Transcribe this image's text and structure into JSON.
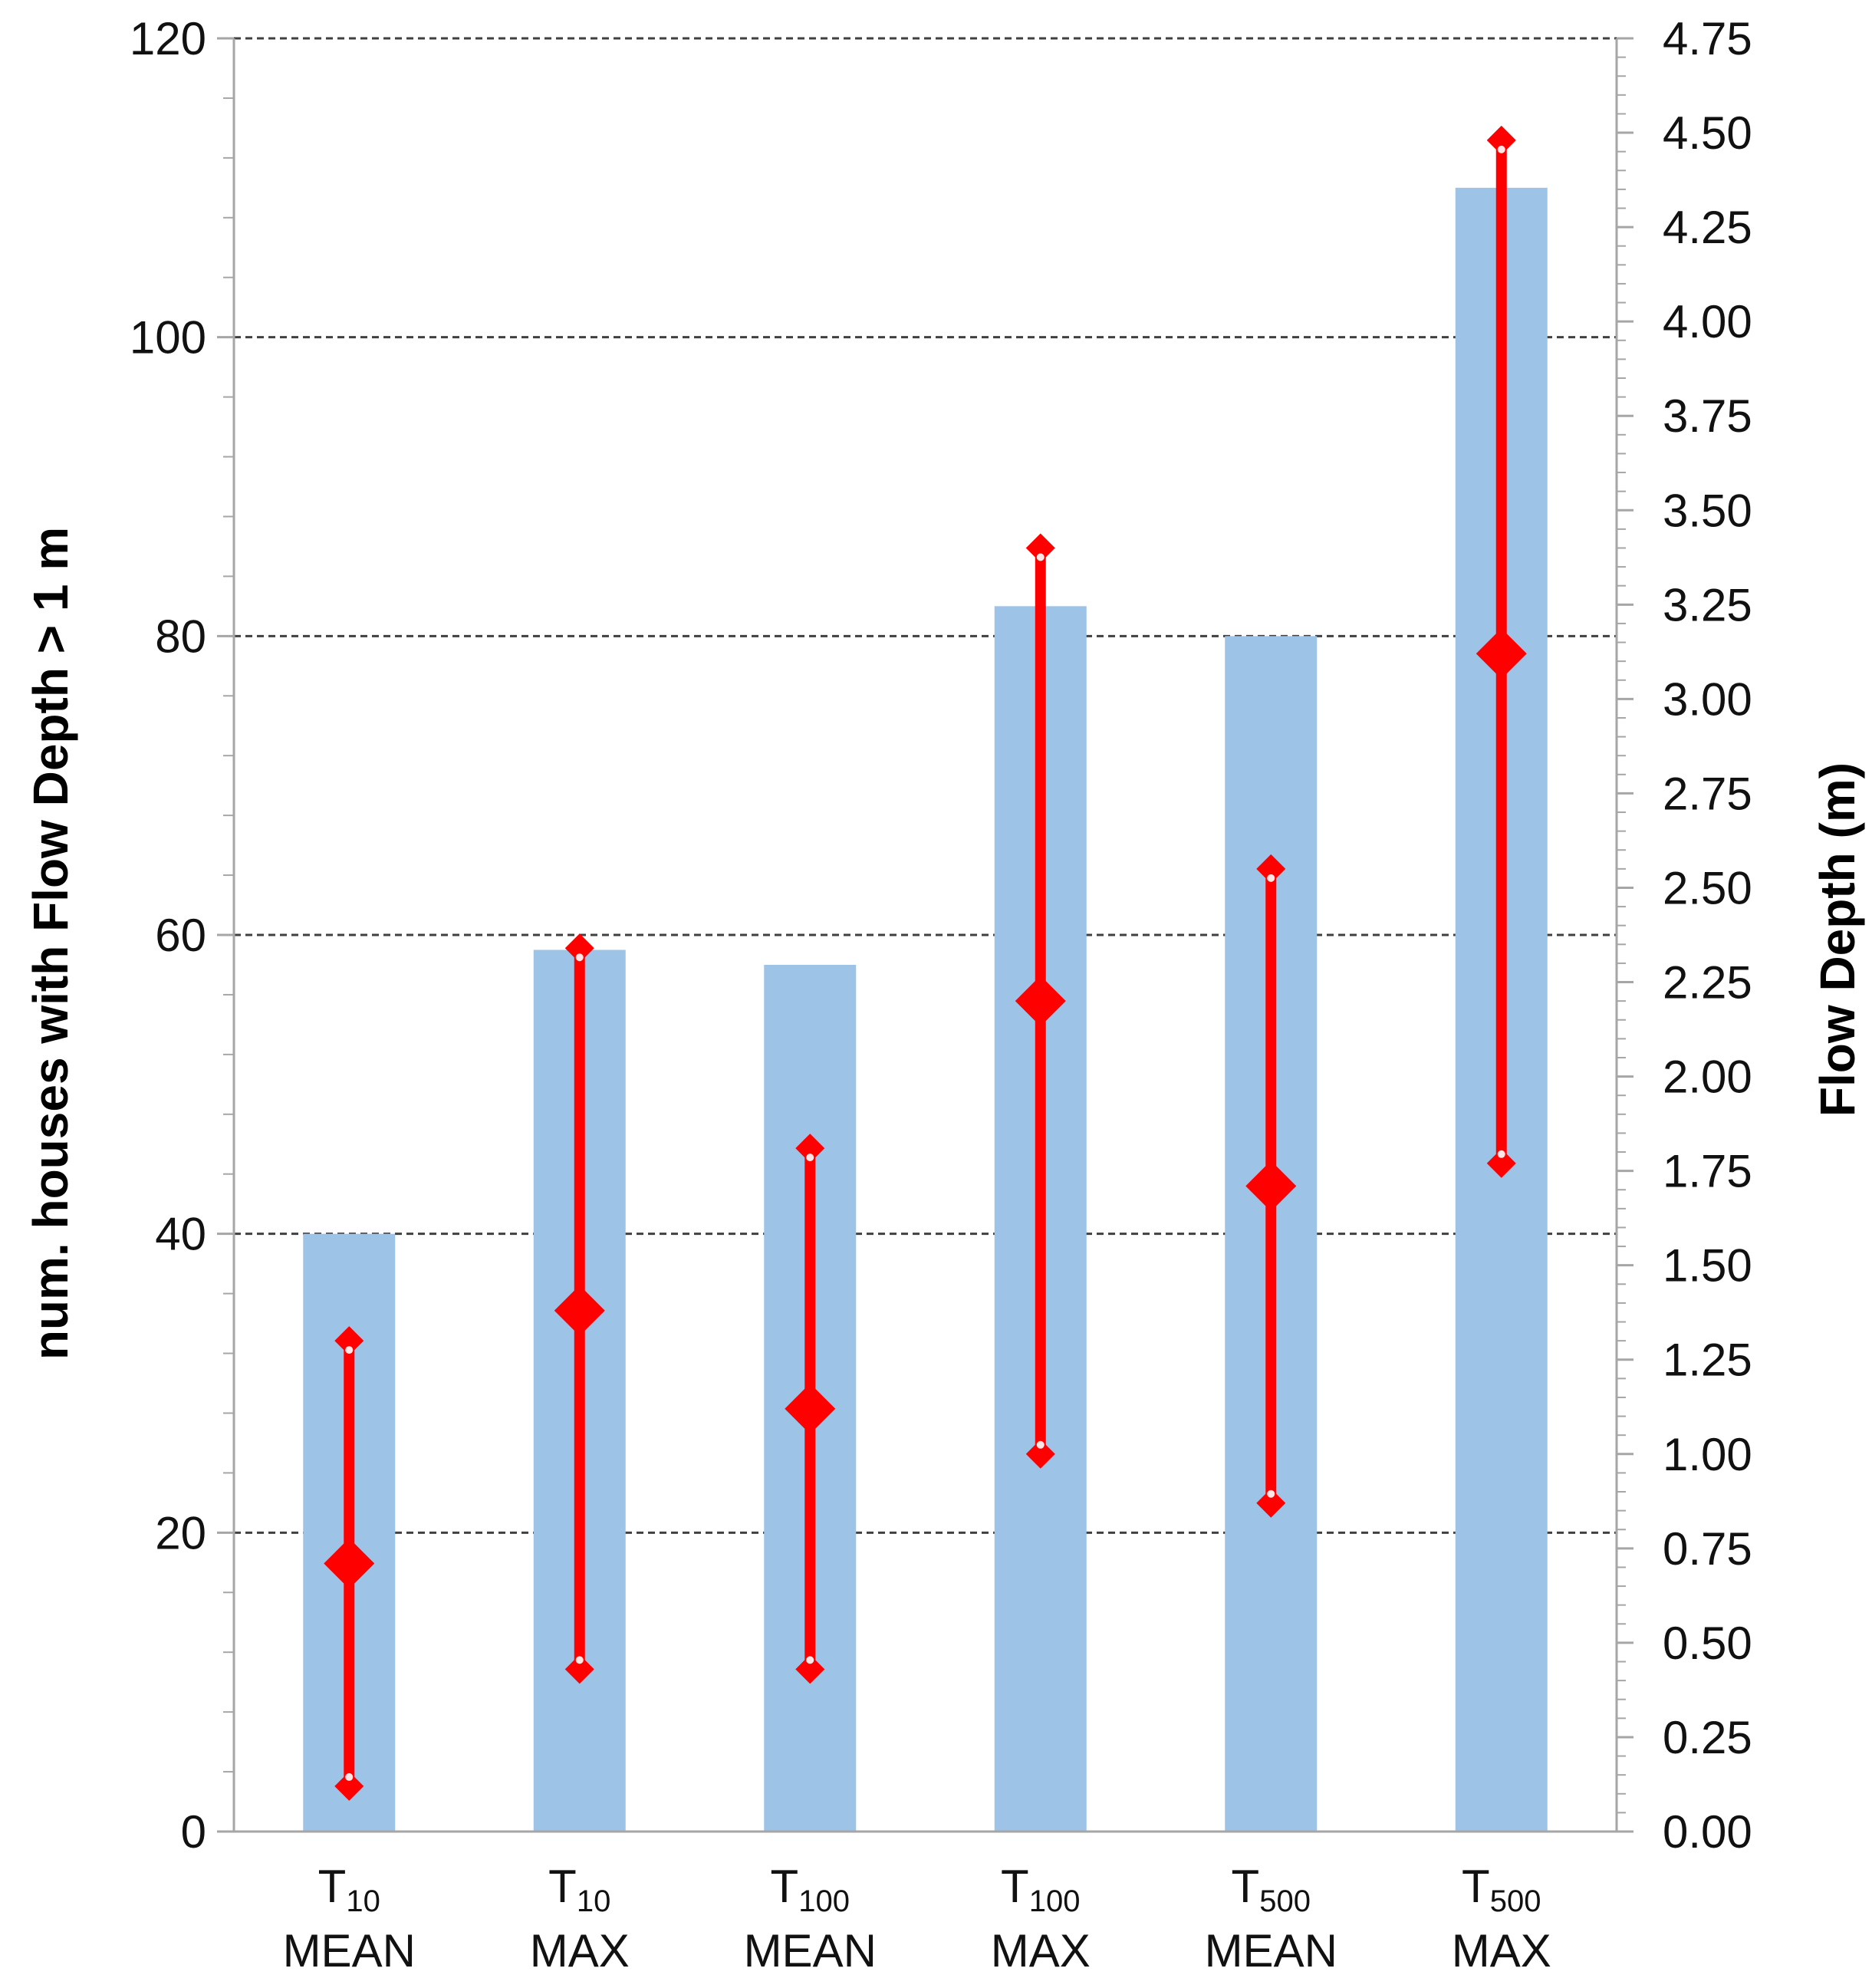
{
  "chart_data": {
    "type": "bar",
    "categories": [
      {
        "sym": "T",
        "sub": "10",
        "stat": "MEAN"
      },
      {
        "sym": "T",
        "sub": "10",
        "stat": "MAX"
      },
      {
        "sym": "T",
        "sub": "100",
        "stat": "MEAN"
      },
      {
        "sym": "T",
        "sub": "100",
        "stat": "MAX"
      },
      {
        "sym": "T",
        "sub": "500",
        "stat": "MEAN"
      },
      {
        "sym": "T",
        "sub": "500",
        "stat": "MAX"
      }
    ],
    "bars": {
      "name": "num. houses with Flow Depth > 1 m",
      "axis": "left",
      "values": [
        40,
        59,
        58,
        82,
        80,
        110
      ]
    },
    "flow_depth": {
      "name": "Flow Depth (m)",
      "axis": "right",
      "center": [
        0.71,
        1.38,
        1.12,
        2.2,
        1.71,
        3.12
      ],
      "low": [
        0.12,
        0.43,
        0.43,
        1.0,
        0.87,
        1.77
      ],
      "high": [
        1.3,
        2.34,
        1.81,
        3.4,
        2.55,
        4.48
      ]
    },
    "left_axis": {
      "label": "num. houses with Flow Depth > 1 m",
      "ylim": [
        0,
        120
      ],
      "major_ticks": [
        "0",
        "20",
        "40",
        "60",
        "80",
        "100",
        "120"
      ],
      "major_step": 20,
      "minor_step": 4
    },
    "right_axis": {
      "label": "Flow Depth (m)",
      "ylim": [
        0,
        4.75
      ],
      "major_ticks": [
        "0.00",
        "0.25",
        "0.50",
        "0.75",
        "1.00",
        "1.25",
        "1.50",
        "1.75",
        "2.00",
        "2.25",
        "2.50",
        "2.75",
        "3.00",
        "3.25",
        "3.50",
        "3.75",
        "4.00",
        "4.25",
        "4.50",
        "4.75"
      ],
      "major_step": 0.25,
      "minor_step": 0.05
    },
    "grid": true,
    "colors": {
      "bar": "#9dc3e6",
      "marker": "#ff0000",
      "axis": "#a6a6a6",
      "grid": "#404040"
    }
  }
}
